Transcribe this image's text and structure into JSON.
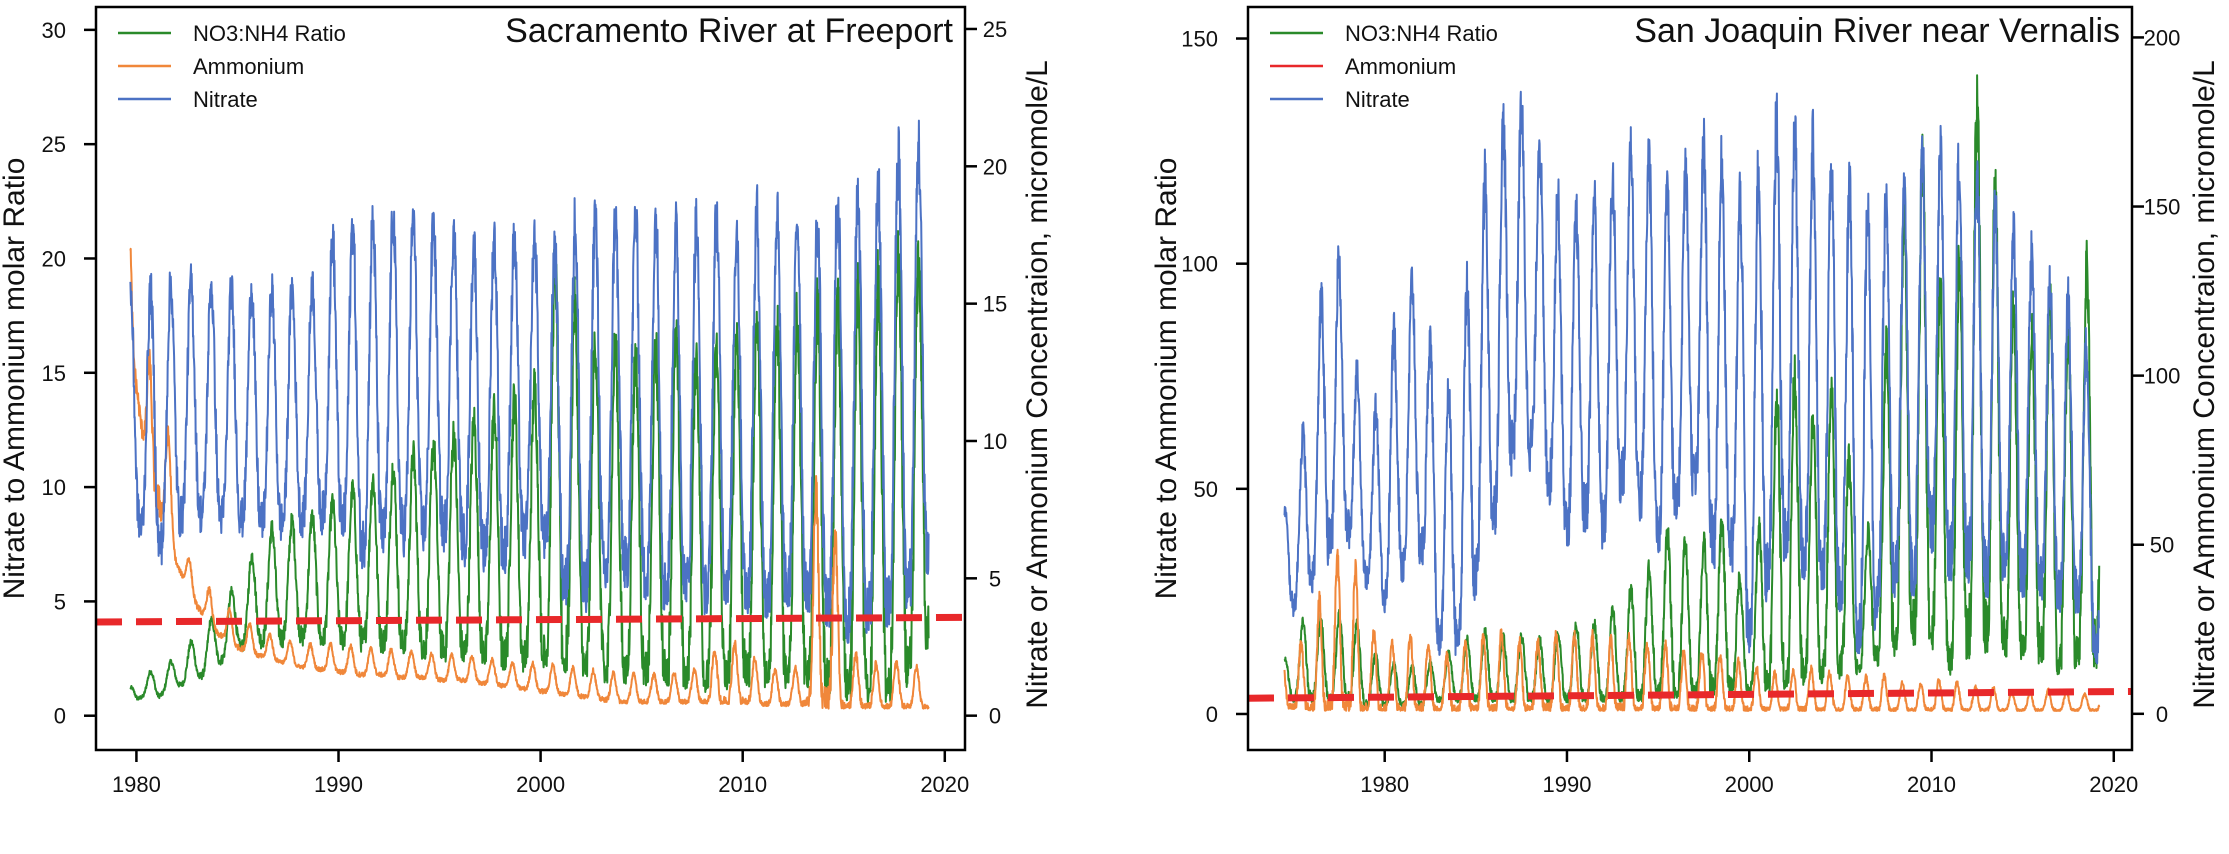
{
  "chart_data": [
    {
      "type": "line",
      "title": "Sacramento River at Freeport",
      "xlabel": "",
      "ylabel": "Nitrate to Ammonium molar Ratio",
      "y2label": "Nitrate or Ammonium Concentraion, micromole/L",
      "xlim": [
        1978,
        2021
      ],
      "ylim": [
        -1.5,
        31
      ],
      "y2lim": [
        -1.25,
        25.8
      ],
      "xticks": [
        "1980",
        "1990",
        "2000",
        "2010",
        "2020"
      ],
      "yticks": [
        "0",
        "5",
        "10",
        "15",
        "20",
        "25",
        "30"
      ],
      "y2ticks": [
        "0",
        "5",
        "10",
        "15",
        "20",
        "25"
      ],
      "legend": [
        "NO3:NH4 Ratio",
        "Ammonium",
        "Nitrate"
      ],
      "legend_position": "top-left",
      "series": [
        {
          "name": "NO3:NH4 Ratio",
          "axis": "left",
          "color": "#2a8a2a",
          "x": [
            1979.7,
            1980.2,
            1981,
            1982,
            1983,
            1984,
            1985,
            1986,
            1987,
            1988,
            1989,
            1990,
            1991,
            1992,
            1993,
            1994,
            1995,
            1996,
            1997,
            1998,
            1999,
            2000,
            2001,
            2002,
            2003,
            2004,
            2005,
            2006,
            2007,
            2008,
            2009,
            2010,
            2011,
            2012,
            2013,
            2014,
            2015,
            2016,
            2017,
            2018,
            2019.2
          ],
          "low": [
            0.4,
            0.8,
            0.8,
            1.3,
            1.6,
            2.3,
            3,
            3.3,
            3.4,
            3.5,
            3.3,
            3.4,
            3.3,
            3.2,
            3.1,
            2.9,
            2.8,
            2.7,
            2.6,
            2.4,
            2.2,
            2.5,
            2.3,
            2,
            1.7,
            1.6,
            1.5,
            1.6,
            1.4,
            1.2,
            1.3,
            1.4,
            1.3,
            1.2,
            1.1,
            1.0,
            0.8,
            0.6,
            0.6,
            1.0,
            3.5
          ],
          "high": [
            1.2,
            1.8,
            2.0,
            2.5,
            3.5,
            4.5,
            5.8,
            7.5,
            8.5,
            8.5,
            8.8,
            9.5,
            10,
            10.5,
            11,
            11.5,
            12,
            12.5,
            13,
            13.5,
            14,
            14.5,
            21.8,
            16,
            16.5,
            16,
            15.5,
            16,
            16.5,
            15.5,
            16,
            17,
            17.5,
            17,
            17.5,
            18,
            18,
            18.5,
            19,
            20,
            20
          ]
        },
        {
          "name": "Ammonium",
          "axis": "right",
          "color": "#f0873a",
          "x": [
            1979.7,
            1980,
            1980.5,
            1981,
            1981.5,
            1982,
            1983,
            1984,
            1985,
            1986,
            1987,
            1988,
            1989,
            1990,
            1991,
            1992,
            1993,
            1994,
            1995,
            1996,
            1997,
            1998,
            1999,
            2000,
            2001,
            2002,
            2003,
            2004,
            2005,
            2006,
            2007,
            2008,
            2009,
            2010,
            2011,
            2012,
            2013,
            2014,
            2015,
            2016,
            2017,
            2018,
            2019.2
          ],
          "low": [
            13.5,
            12,
            9,
            8,
            7,
            5.5,
            4,
            3,
            2.5,
            2.2,
            2.0,
            1.8,
            1.7,
            1.6,
            1.5,
            1.5,
            1.4,
            1.4,
            1.3,
            1.3,
            1.2,
            1.1,
            1.0,
            0.9,
            0.8,
            0.7,
            0.6,
            0.5,
            0.5,
            0.5,
            0.5,
            0.5,
            0.5,
            0.5,
            0.4,
            0.4,
            0.4,
            0.3,
            0.3,
            0.3,
            0.3,
            0.3,
            0.3
          ],
          "high": [
            18.5,
            16,
            12,
            16,
            11,
            6.5,
            5.2,
            4.2,
            3.6,
            3.2,
            2.8,
            2.6,
            2.6,
            2.6,
            2.5,
            2.4,
            2.4,
            2.3,
            2.2,
            2.2,
            2.1,
            2.0,
            1.9,
            1.9,
            1.8,
            1.7,
            1.6,
            1.5,
            1.5,
            1.5,
            1.6,
            1.7,
            2.8,
            2.5,
            1.8,
            1.6,
            1.8,
            12.2,
            2.5,
            2.0,
            1.8,
            2.0,
            1.5
          ]
        },
        {
          "name": "Nitrate",
          "axis": "right",
          "color": "#4c72c4",
          "x": [
            1979.7,
            1980,
            1981,
            1982,
            1983,
            1984,
            1985,
            1986,
            1987,
            1988,
            1989,
            1990,
            1991,
            1992,
            1993,
            1994,
            1995,
            1996,
            1997,
            1998,
            1999,
            2000,
            2001,
            2002,
            2003,
            2004,
            2005,
            2006,
            2007,
            2008,
            2009,
            2010,
            2011,
            2012,
            2013,
            2014,
            2015,
            2016,
            2017,
            2018,
            2019.2
          ],
          "low": [
            7.5,
            7.2,
            6.0,
            7.2,
            7.4,
            7.3,
            7.2,
            7.1,
            7.0,
            7.2,
            7.4,
            7.3,
            6.2,
            6.5,
            6.8,
            6.8,
            7.0,
            6.5,
            6.0,
            5.8,
            6.5,
            6.8,
            4.8,
            4.2,
            5.0,
            5.5,
            5.0,
            4.5,
            4.8,
            4.2,
            4.8,
            4.5,
            4.0,
            4.5,
            4.2,
            4.0,
            3.0,
            3.5,
            3.5,
            4.2,
            6.0
          ],
          "high": [
            15.5,
            15.3,
            15.5,
            15.8,
            15.7,
            15.6,
            15.5,
            15.6,
            15.4,
            15.6,
            15.8,
            18.0,
            17.8,
            18.0,
            18.2,
            18.0,
            17.8,
            17.5,
            17.0,
            17.6,
            17.2,
            17.5,
            17.0,
            18.2,
            18.2,
            18.0,
            18.2,
            18.0,
            17.5,
            18.0,
            18.2,
            17.5,
            18.5,
            18.0,
            18.2,
            17.8,
            19.5,
            19.0,
            19.8,
            20.5,
            20.8
          ]
        },
        {
          "name": "",
          "axis": "left",
          "color": "#e8282a",
          "style": "dashed",
          "x": [
            1978,
            2021
          ],
          "y": [
            4.1,
            4.3
          ]
        }
      ]
    },
    {
      "type": "line",
      "title": "San Joaquin River near Vernalis",
      "xlabel": "",
      "ylabel": "Nitrate to Ammonium molar Ratio",
      "y2label": "Nitrate or Ammonium Concentraion, micromole/L",
      "xlim": [
        1972.5,
        2021
      ],
      "ylim": [
        -8,
        157
      ],
      "y2lim": [
        -10.7,
        209
      ],
      "xticks": [
        "1980",
        "1990",
        "2000",
        "2010",
        "2020"
      ],
      "yticks": [
        "0",
        "50",
        "100",
        "150"
      ],
      "y2ticks": [
        "0",
        "50",
        "100",
        "150",
        "200"
      ],
      "legend": [
        "NO3:NH4 Ratio",
        "Ammonium",
        "Nitrate"
      ],
      "legend_position": "top-left",
      "series": [
        {
          "name": "NO3:NH4 Ratio",
          "axis": "left",
          "color": "#2a8a2a",
          "x": [
            1974.5,
            1975,
            1976,
            1977,
            1978,
            1979,
            1980,
            1981,
            1982,
            1983,
            1984,
            1985,
            1986,
            1987,
            1988,
            1989,
            1990,
            1991,
            1992,
            1993,
            1994,
            1995,
            1996,
            1997,
            1998,
            1999,
            2000,
            2001,
            2002,
            2003,
            2004,
            2005,
            2006,
            2007,
            2008,
            2009,
            2010,
            2011,
            2012,
            2013,
            2014,
            2015,
            2016,
            2017,
            2018,
            2019.2
          ],
          "low": [
            5,
            3,
            3,
            3,
            3,
            2,
            2,
            2,
            2,
            3,
            3,
            3,
            3,
            3,
            3,
            3,
            3,
            3,
            3,
            3,
            3,
            4,
            4,
            4,
            5,
            5,
            5,
            6,
            6,
            7,
            8,
            9,
            10,
            12,
            15,
            18,
            16,
            10,
            14,
            16,
            15,
            14,
            13,
            10,
            12,
            12
          ],
          "high": [
            12,
            16,
            24,
            18,
            25,
            14,
            12,
            10,
            11,
            12,
            15,
            18,
            18,
            16,
            18,
            15,
            20,
            20,
            20,
            25,
            30,
            35,
            45,
            30,
            45,
            40,
            20,
            60,
            80,
            70,
            60,
            80,
            30,
            50,
            110,
            115,
            130,
            60,
            137,
            135,
            100,
            80,
            90,
            95,
            80,
            125
          ]
        },
        {
          "name": "Ammonium",
          "axis": "right",
          "color": "#f0873a",
          "x": [
            1974.5,
            1975,
            1976,
            1977,
            1978,
            1979,
            1980,
            1981,
            1982,
            1983,
            1984,
            1985,
            1986,
            1987,
            1988,
            1989,
            1990,
            1991,
            1992,
            1993,
            1994,
            1995,
            1996,
            1997,
            1998,
            1999,
            2000,
            2001,
            2002,
            2003,
            2004,
            2005,
            2006,
            2007,
            2008,
            2009,
            2010,
            2011,
            2012,
            2013,
            2014,
            2015,
            2016,
            2017,
            2018,
            2019.2
          ],
          "low": [
            2,
            1.5,
            1,
            1,
            1,
            1,
            1,
            1,
            1,
            1,
            1,
            1,
            1,
            1,
            1,
            1,
            1,
            1,
            1,
            1,
            1,
            1,
            1,
            1,
            1,
            1,
            1,
            1,
            1,
            1,
            1,
            1,
            1,
            1,
            1,
            1,
            1,
            1,
            1,
            1,
            1,
            1,
            1,
            1,
            1,
            1
          ],
          "high": [
            15,
            18,
            25,
            45,
            52,
            28,
            20,
            22,
            25,
            15,
            20,
            22,
            25,
            22,
            20,
            25,
            22,
            25,
            20,
            25,
            20,
            22,
            18,
            18,
            18,
            16,
            15,
            12,
            12,
            14,
            12,
            12,
            10,
            12,
            10,
            8,
            10,
            10,
            8,
            8,
            7,
            6,
            7,
            7,
            6,
            6
          ]
        },
        {
          "name": "Nitrate",
          "axis": "right",
          "color": "#4c72c4",
          "x": [
            1974.5,
            1975,
            1976,
            1977,
            1978,
            1979,
            1980,
            1981,
            1982,
            1983,
            1984,
            1985,
            1986,
            1987,
            1988,
            1989,
            1990,
            1991,
            1992,
            1993,
            1994,
            1995,
            1996,
            1997,
            1998,
            1999,
            2000,
            2001,
            2002,
            2003,
            2004,
            2005,
            2006,
            2007,
            2008,
            2009,
            2010,
            2011,
            2012,
            2013,
            2014,
            2015,
            2016,
            2017,
            2018,
            2019.2
          ],
          "low": [
            35,
            32,
            40,
            50,
            55,
            40,
            35,
            45,
            50,
            20,
            20,
            40,
            60,
            80,
            80,
            70,
            55,
            60,
            55,
            70,
            65,
            55,
            60,
            70,
            50,
            50,
            20,
            40,
            50,
            45,
            40,
            35,
            20,
            30,
            40,
            40,
            55,
            45,
            45,
            40,
            45,
            40,
            40,
            35,
            35,
            15
          ],
          "high": [
            60,
            70,
            95,
            148,
            120,
            80,
            100,
            125,
            130,
            90,
            100,
            150,
            165,
            183,
            175,
            165,
            140,
            155,
            150,
            165,
            170,
            160,
            155,
            165,
            170,
            155,
            150,
            170,
            180,
            170,
            165,
            160,
            155,
            150,
            150,
            160,
            170,
            160,
            165,
            155,
            145,
            140,
            130,
            125,
            120,
            90
          ]
        },
        {
          "name": "",
          "axis": "left",
          "color": "#e8282a",
          "style": "dashed",
          "x": [
            1972.5,
            2021
          ],
          "y": [
            3.5,
            5.0
          ]
        }
      ]
    }
  ]
}
